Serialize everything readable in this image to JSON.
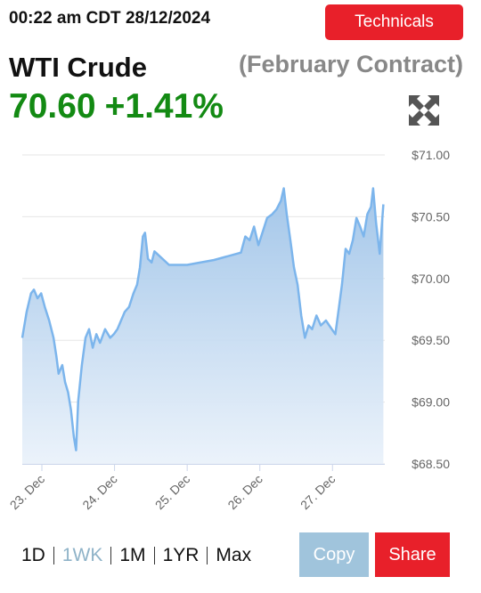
{
  "header": {
    "timestamp": "00:22 am CDT 28/12/2024",
    "technicals_button": "Technicals",
    "instrument": "WTI Crude",
    "contract": "(February Contract)",
    "price": "70.60",
    "change": "+1.41%"
  },
  "chart_data": {
    "type": "line",
    "x": [
      22.73,
      22.79,
      22.85,
      22.89,
      22.94,
      22.99,
      23.04,
      23.1,
      23.16,
      23.2,
      23.23,
      23.28,
      23.32,
      23.36,
      23.4,
      23.44,
      23.47,
      23.5,
      23.55,
      23.6,
      23.65,
      23.7,
      23.75,
      23.8,
      23.87,
      23.94,
      23.99,
      24.04,
      24.09,
      24.14,
      24.2,
      24.26,
      24.31,
      24.35,
      24.39,
      24.42,
      24.46,
      24.51,
      24.55,
      24.75,
      25.0,
      25.37,
      25.74,
      25.8,
      25.86,
      25.92,
      25.98,
      26.04,
      26.1,
      26.17,
      26.23,
      26.29,
      26.33,
      26.37,
      26.42,
      26.47,
      26.52,
      26.57,
      26.62,
      26.67,
      26.72,
      26.78,
      26.84,
      26.91,
      26.99,
      27.04,
      27.09,
      27.13,
      27.18,
      27.23,
      27.28,
      27.33,
      27.38,
      27.43,
      27.48,
      27.53,
      27.56,
      27.6,
      27.65,
      27.7
    ],
    "series": [
      {
        "name": "WTI Crude",
        "color": "#7cb5ec",
        "values": [
          69.52,
          69.73,
          69.88,
          69.91,
          69.84,
          69.88,
          69.77,
          69.66,
          69.52,
          69.37,
          69.23,
          69.3,
          69.16,
          69.08,
          68.94,
          68.72,
          68.61,
          69.01,
          69.3,
          69.52,
          69.59,
          69.44,
          69.55,
          69.48,
          69.59,
          69.52,
          69.55,
          69.59,
          69.66,
          69.73,
          69.77,
          69.88,
          69.95,
          70.09,
          70.34,
          70.37,
          70.16,
          70.13,
          70.22,
          70.11,
          70.11,
          70.15,
          70.21,
          70.34,
          70.31,
          70.42,
          70.27,
          70.38,
          70.49,
          70.52,
          70.56,
          70.63,
          70.73,
          70.52,
          70.31,
          70.09,
          69.95,
          69.7,
          69.52,
          69.62,
          69.59,
          69.7,
          69.62,
          69.66,
          69.59,
          69.55,
          69.77,
          69.95,
          70.24,
          70.2,
          70.31,
          70.49,
          70.42,
          70.34,
          70.52,
          70.58,
          70.73,
          70.45,
          70.2,
          70.6
        ]
      }
    ],
    "xlim": [
      22.73,
      27.72
    ],
    "xticks": [
      {
        "value": 23,
        "label": "23. Dec"
      },
      {
        "value": 24,
        "label": "24. Dec"
      },
      {
        "value": 25,
        "label": "25. Dec"
      },
      {
        "value": 26,
        "label": "26. Dec"
      },
      {
        "value": 27,
        "label": "27. Dec"
      }
    ],
    "ylim": [
      68.5,
      71.0
    ],
    "yticks": [
      {
        "value": 68.5,
        "label": "$68.50"
      },
      {
        "value": 69,
        "label": "$69.00"
      },
      {
        "value": 69.5,
        "label": "$69.50"
      },
      {
        "value": 70,
        "label": "$70.00"
      },
      {
        "value": 70.5,
        "label": "$70.50"
      },
      {
        "value": 71,
        "label": "$71.00"
      }
    ],
    "grid": true
  },
  "controls": {
    "ranges": [
      "1D",
      "1WK",
      "1M",
      "1YR",
      "Max"
    ],
    "copy": "Copy",
    "share": "Share"
  }
}
